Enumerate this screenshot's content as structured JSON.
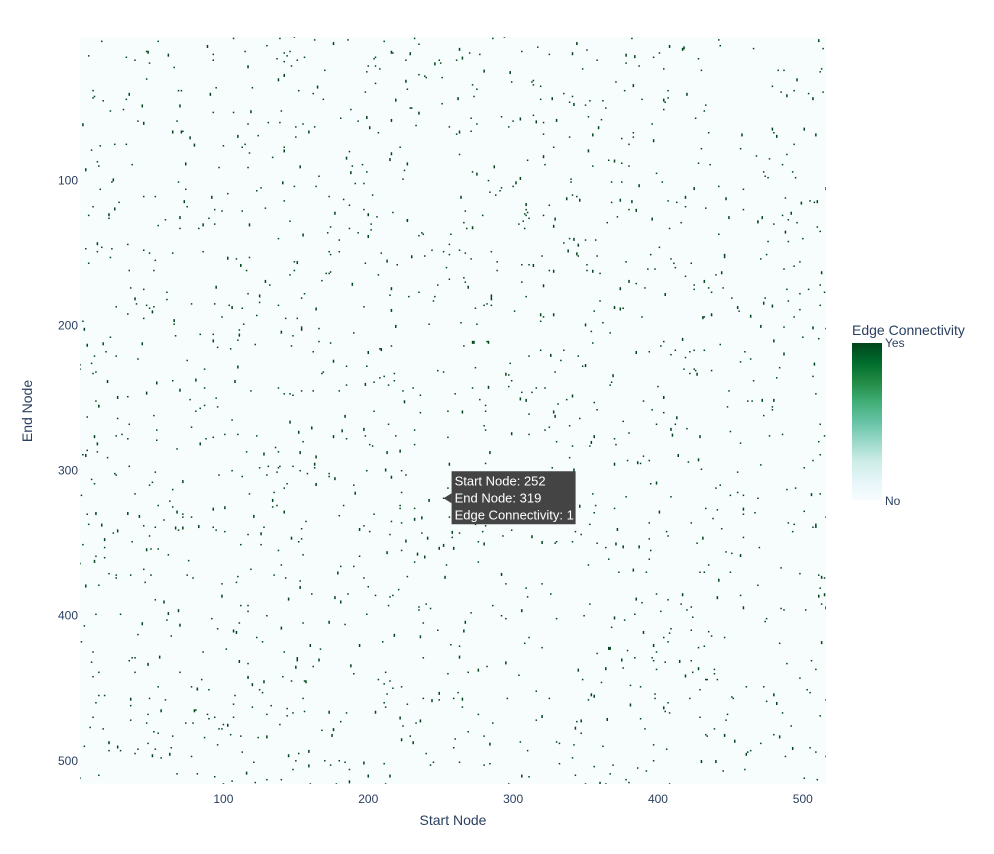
{
  "chart_data": {
    "type": "heatmap",
    "title": "",
    "xlabel": "Start Node",
    "ylabel": "End Node",
    "xlim": [
      1,
      516
    ],
    "ylim": [
      516,
      1
    ],
    "x_ticks": [
      100,
      200,
      300,
      400,
      500
    ],
    "y_ticks": [
      100,
      200,
      300,
      400,
      500
    ],
    "z_values": [
      0,
      1
    ],
    "grid": false,
    "colorbar": {
      "title": "Edge Connectivity",
      "tick_labels": [
        "No",
        "Yes"
      ],
      "colors": [
        "#f7fcfd",
        "#e5f5f9",
        "#ccece6",
        "#99d8c9",
        "#66c2a4",
        "#41ae76",
        "#238b45",
        "#006d2c",
        "#00441b"
      ]
    },
    "background_color": "#f7fcfd",
    "edge_color": "#00441b",
    "edge_density_estimate": 0.006,
    "hover": {
      "x": 252,
      "y": 319,
      "lines": [
        "Start Node: 252",
        "End Node: 319",
        "Edge Connectivity: 1"
      ]
    }
  }
}
